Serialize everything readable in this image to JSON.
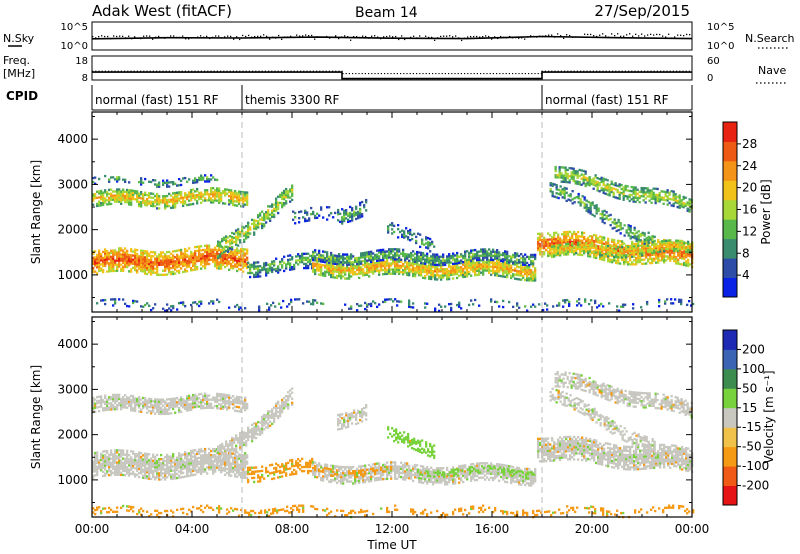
{
  "header": {
    "station": "Adak West (fitACF)",
    "beam": "Beam 14",
    "date": "27/Sep/2015"
  },
  "side_labels": {
    "nsky": "N.Sky",
    "nsky_ticks": [
      "10^5",
      "10^0"
    ],
    "nsearch": "N.Search",
    "nsearch_ticks": [
      "10^5",
      "10^0"
    ],
    "freq_top": "Freq.",
    "freq_unit": "[MHz]",
    "freq_ticks": [
      "18",
      "8"
    ],
    "nave": "Nave",
    "nave_ticks": [
      "60",
      "0"
    ],
    "cpid": "CPID"
  },
  "cpid_segments": [
    {
      "label": "normal (fast) 151 RF",
      "start_h": 0,
      "end_h": 6
    },
    {
      "label": "themis 3300 RF",
      "start_h": 6,
      "end_h": 18
    },
    {
      "label": "normal (fast) 151 RF",
      "start_h": 18,
      "end_h": 24
    }
  ],
  "colors": {
    "power": [
      "#0a22e6",
      "#2d4ca8",
      "#3a8c6e",
      "#58b84a",
      "#a8d838",
      "#f0c21a",
      "#f39418",
      "#ee5a14",
      "#e82210"
    ],
    "velocity": [
      "#e61414",
      "#f05a14",
      "#f59a14",
      "#f0c24a",
      "#c8c8c0",
      "#78d23c",
      "#3c8c50",
      "#3c64b4",
      "#1e2ab4"
    ]
  },
  "chart_data": [
    {
      "type": "line",
      "name": "noise",
      "ylabel_left": "N.Sky",
      "ylabel_right": "N.Search",
      "yscale": "log",
      "ylim": [
        1,
        100000
      ],
      "xlim_hours": [
        0,
        24
      ],
      "series": [
        {
          "x": [
            0,
            3,
            6,
            9,
            12,
            15,
            18,
            21,
            24
          ],
          "y": [
            100,
            160,
            140,
            200,
            130,
            110,
            260,
            160,
            110
          ]
        }
      ]
    },
    {
      "type": "line",
      "name": "frequency",
      "ylabel_left": "Freq. [MHz]",
      "ylabel_right": "Nave",
      "ylim": [
        8,
        18
      ],
      "y2lim": [
        0,
        60
      ],
      "xlim_hours": [
        0,
        24
      ],
      "series": [
        {
          "name": "Freq.",
          "x": [
            0,
            10,
            10,
            18,
            18,
            24
          ],
          "y": [
            11.3,
            11.3,
            8.6,
            8.6,
            11.3,
            11.3
          ]
        },
        {
          "name": "Nave",
          "x": [
            0,
            10,
            10,
            18,
            18,
            24
          ],
          "y": [
            22,
            22,
            16,
            16,
            22,
            22
          ]
        }
      ]
    },
    {
      "type": "heatmap",
      "name": "power",
      "title": "",
      "xlabel": "",
      "ylabel": "Slant Range [km]",
      "xlim_hours": [
        0,
        24
      ],
      "ylim_km": [
        180,
        4600
      ],
      "yticks": [
        1000,
        2000,
        3000,
        4000
      ],
      "colorbar_label": "Power [dB]",
      "colorbar_range": [
        0,
        32
      ],
      "colorbar_ticks": [
        4,
        8,
        12,
        16,
        20,
        24,
        28
      ],
      "bands": [
        {
          "t0": 0.0,
          "t1": 6.2,
          "r0": 1250,
          "r1": 1350,
          "slope": 0,
          "width": 260,
          "v": 27,
          "density": 0.97
        },
        {
          "t0": 0.0,
          "t1": 6.2,
          "r0": 2650,
          "r1": 2700,
          "slope": 0,
          "width": 170,
          "v": 21,
          "density": 0.9
        },
        {
          "t0": 0.0,
          "t1": 5.0,
          "r0": 3050,
          "r1": 3050,
          "slope": 0,
          "width": 70,
          "v": 14,
          "density": 0.45
        },
        {
          "t0": 5.0,
          "t1": 8.0,
          "r0": 1500,
          "r1": 2800,
          "slope": 0,
          "width": 200,
          "v": 18,
          "density": 0.8
        },
        {
          "t0": 6.2,
          "t1": 8.8,
          "r0": 1150,
          "r1": 1250,
          "slope": 0,
          "width": 170,
          "v": 14,
          "density": 0.7
        },
        {
          "t0": 8.8,
          "t1": 17.7,
          "r0": 1150,
          "r1": 1100,
          "slope": 0,
          "width": 190,
          "v": 22,
          "density": 0.97
        },
        {
          "t0": 8.8,
          "t1": 17.7,
          "r0": 1380,
          "r1": 1370,
          "slope": 0,
          "width": 120,
          "v": 14,
          "density": 0.85
        },
        {
          "t0": 9.8,
          "t1": 11.0,
          "r0": 2300,
          "r1": 2500,
          "slope": 0,
          "width": 160,
          "v": 14,
          "density": 0.7
        },
        {
          "t0": 8.0,
          "t1": 9.7,
          "r0": 2200,
          "r1": 2400,
          "slope": 0,
          "width": 150,
          "v": 11,
          "density": 0.4
        },
        {
          "t0": 11.8,
          "t1": 13.7,
          "r0": 1950,
          "r1": 1650,
          "slope": 0,
          "width": 140,
          "v": 12,
          "density": 0.55
        },
        {
          "t0": 17.8,
          "t1": 24.0,
          "r0": 1700,
          "r1": 1400,
          "slope": 0,
          "width": 260,
          "v": 26,
          "density": 0.97
        },
        {
          "t0": 18.2,
          "t1": 24.0,
          "r0": 1500,
          "r1": 1580,
          "slope": 0,
          "width": 120,
          "v": 22,
          "density": 0.85
        },
        {
          "t0": 18.3,
          "t1": 22.5,
          "r0": 2900,
          "r1": 1700,
          "slope": 0,
          "width": 150,
          "v": 15,
          "density": 0.65
        },
        {
          "t0": 18.5,
          "t1": 24.0,
          "r0": 3200,
          "r1": 2500,
          "slope": 0,
          "width": 160,
          "v": 18,
          "density": 0.8
        },
        {
          "t0": 0.0,
          "t1": 24.0,
          "r0": 330,
          "r1": 330,
          "slope": 0,
          "width": 90,
          "v": 10,
          "density": 0.25
        }
      ]
    },
    {
      "type": "heatmap",
      "name": "velocity",
      "title": "",
      "xlabel": "Time UT",
      "ylabel": "Slant Range [km]",
      "xlim_hours": [
        0,
        24
      ],
      "ylim_km": [
        180,
        4600
      ],
      "yticks": [
        1000,
        2000,
        3000,
        4000
      ],
      "xticks": [
        "00:00",
        "04:00",
        "08:00",
        "12:00",
        "16:00",
        "20:00",
        "00:00"
      ],
      "colorbar_label": "Velocity [m s⁻¹]",
      "colorbar_ticks": [
        "-200",
        "-100",
        "-50",
        "-15",
        "15",
        "50",
        "100",
        "200"
      ],
      "bands": [
        {
          "t0": 0.0,
          "t1": 6.2,
          "r0": 1300,
          "r1": 1350,
          "width": 280,
          "v": 0,
          "density": 0.97
        },
        {
          "t0": 0.0,
          "t1": 6.2,
          "r0": 2650,
          "r1": 2700,
          "width": 180,
          "v": 0,
          "density": 0.9
        },
        {
          "t0": 5.0,
          "t1": 8.0,
          "r0": 1500,
          "r1": 2800,
          "width": 200,
          "v": 0,
          "density": 0.85
        },
        {
          "t0": 6.2,
          "t1": 8.8,
          "r0": 1150,
          "r1": 1250,
          "width": 170,
          "v": -40,
          "density": 0.7
        },
        {
          "t0": 8.8,
          "t1": 17.7,
          "r0": 1150,
          "r1": 1100,
          "width": 190,
          "v": 0,
          "density": 0.95
        },
        {
          "t0": 8.8,
          "t1": 12.0,
          "r0": 1200,
          "r1": 1150,
          "width": 90,
          "v": -60,
          "density": 0.55
        },
        {
          "t0": 13.0,
          "t1": 17.7,
          "r0": 1200,
          "r1": 1150,
          "width": 90,
          "v": 40,
          "density": 0.45
        },
        {
          "t0": 9.8,
          "t1": 11.0,
          "r0": 2300,
          "r1": 2500,
          "width": 160,
          "v": 0,
          "density": 0.7
        },
        {
          "t0": 11.8,
          "t1": 13.7,
          "r0": 1950,
          "r1": 1650,
          "width": 140,
          "v": 40,
          "density": 0.55
        },
        {
          "t0": 17.8,
          "t1": 24.0,
          "r0": 1700,
          "r1": 1400,
          "width": 260,
          "v": 0,
          "density": 0.97
        },
        {
          "t0": 18.3,
          "t1": 22.5,
          "r0": 2900,
          "r1": 1700,
          "width": 150,
          "v": 0,
          "density": 0.65
        },
        {
          "t0": 18.5,
          "t1": 24.0,
          "r0": 3200,
          "r1": 2500,
          "width": 160,
          "v": 0,
          "density": 0.8
        },
        {
          "t0": 0.0,
          "t1": 24.0,
          "r0": 300,
          "r1": 300,
          "width": 90,
          "v": -60,
          "density": 0.3
        }
      ]
    }
  ]
}
